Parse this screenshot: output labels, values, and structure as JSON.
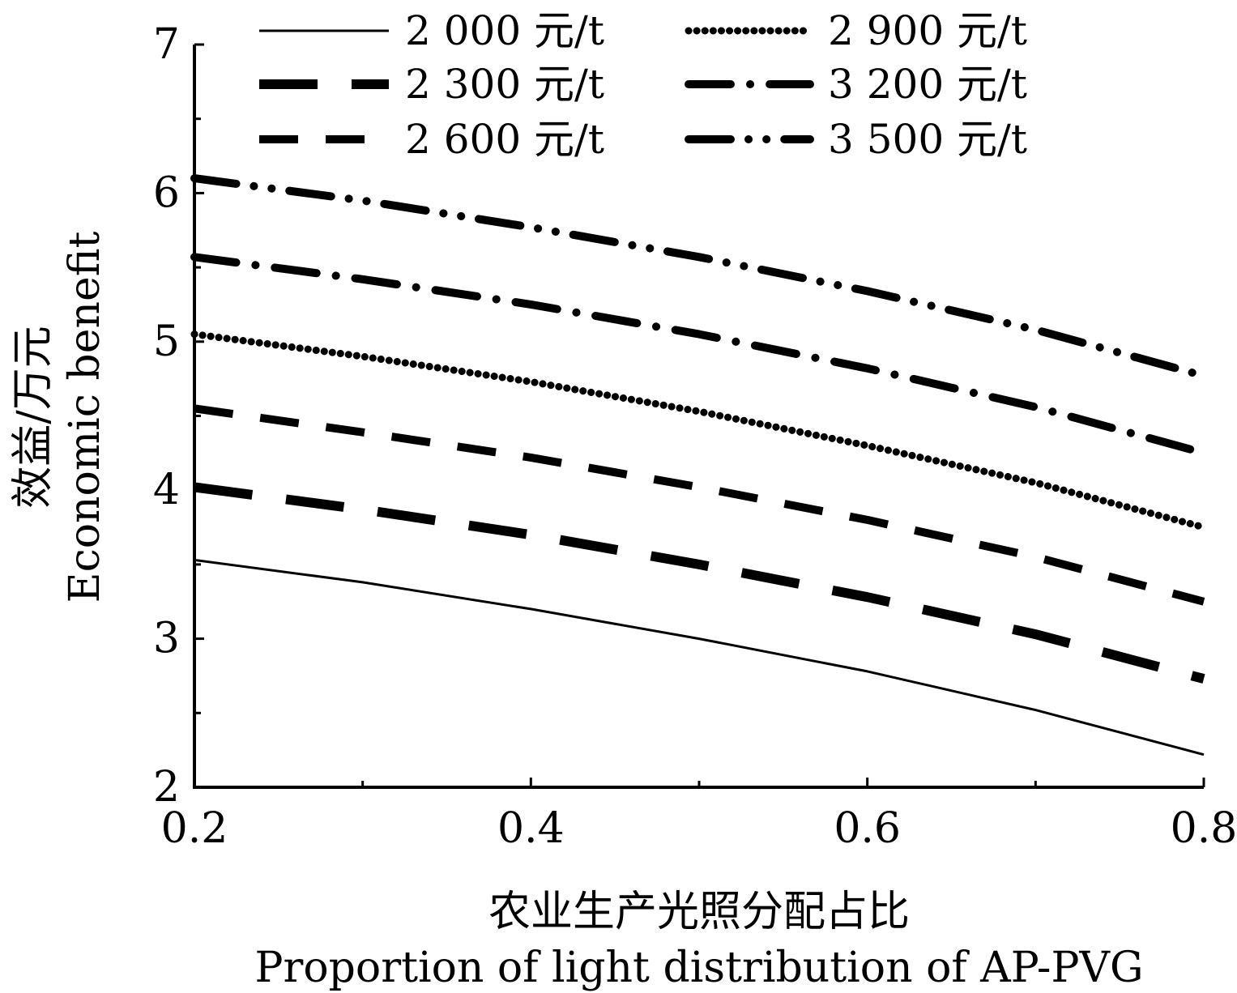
{
  "chart_data": {
    "type": "line",
    "title": "",
    "xlabel_cn": "农业生产光照分配占比",
    "xlabel_en": "Proportion of light distribution of AP-PVG",
    "ylabel_cn": "效益/万元",
    "ylabel_en": "Economic benefit",
    "xlim": [
      0.2,
      0.8
    ],
    "ylim": [
      2,
      7
    ],
    "x_ticks": [
      "0.2",
      "0.4",
      "0.6",
      "0.8"
    ],
    "y_ticks": [
      "2",
      "3",
      "4",
      "5",
      "6",
      "7"
    ],
    "grid": false,
    "legend_position": "top",
    "x": [
      0.2,
      0.3,
      0.4,
      0.5,
      0.6,
      0.7,
      0.8
    ],
    "series": [
      {
        "name": "2 000 元/t",
        "style": "solid",
        "values": [
          3.53,
          3.38,
          3.2,
          3.0,
          2.78,
          2.52,
          2.22
        ]
      },
      {
        "name": "2 300 元/t",
        "style": "long-dash",
        "values": [
          4.02,
          3.87,
          3.7,
          3.5,
          3.28,
          3.03,
          2.73
        ]
      },
      {
        "name": "2 600 元/t",
        "style": "dash",
        "values": [
          4.55,
          4.39,
          4.22,
          4.02,
          3.8,
          3.55,
          3.25
        ]
      },
      {
        "name": "2 900 元/t",
        "style": "dotted",
        "values": [
          5.05,
          4.9,
          4.73,
          4.53,
          4.3,
          4.05,
          3.75
        ]
      },
      {
        "name": "3 200 元/t",
        "style": "dash-dot",
        "values": [
          5.57,
          5.42,
          5.25,
          5.05,
          4.82,
          4.56,
          4.25
        ]
      },
      {
        "name": "3 500 元/t",
        "style": "dash-dot-dot",
        "values": [
          6.1,
          5.95,
          5.77,
          5.57,
          5.34,
          5.08,
          4.77
        ]
      }
    ]
  }
}
